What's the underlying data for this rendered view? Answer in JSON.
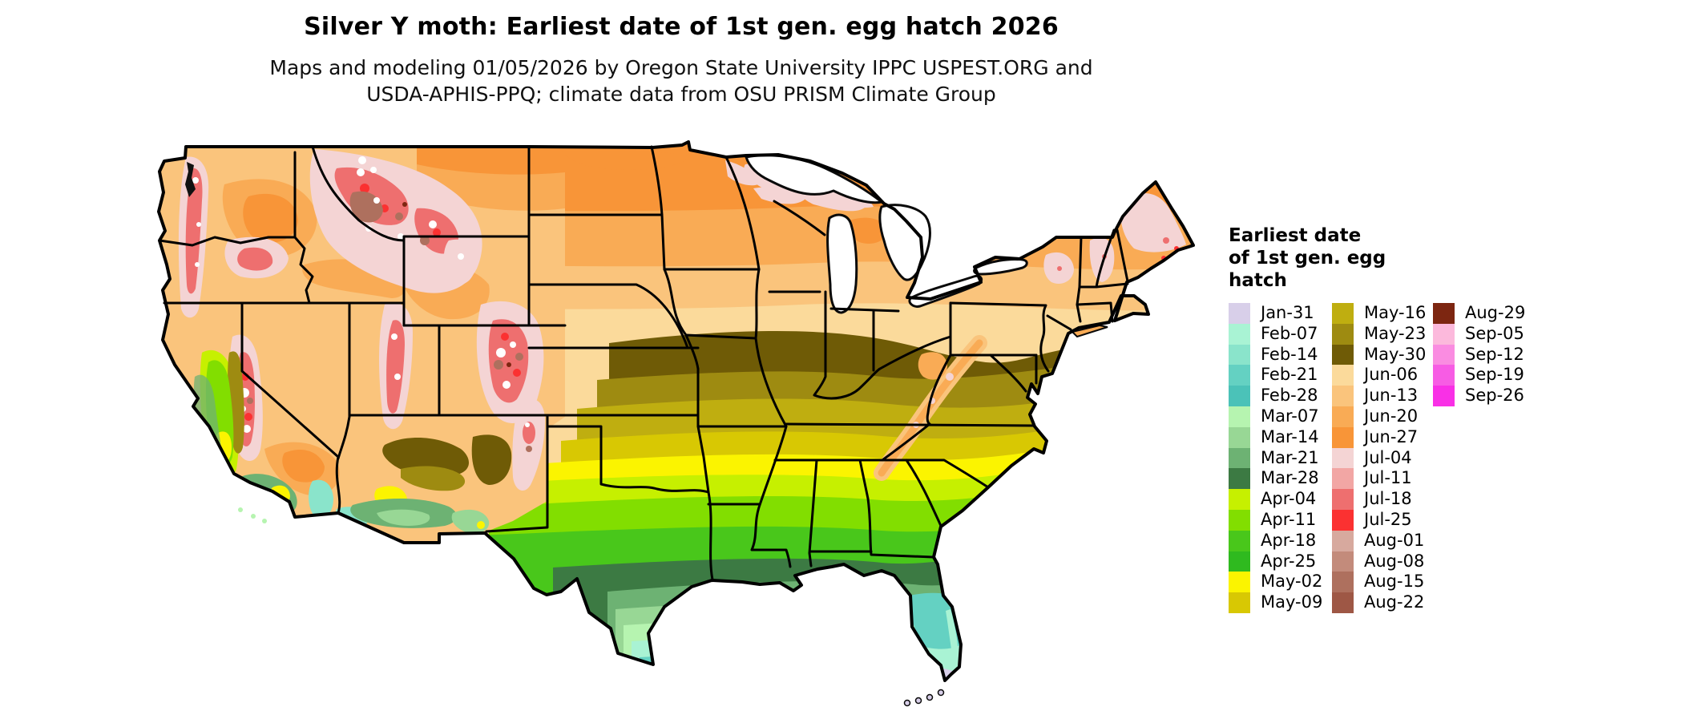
{
  "title": "Silver Y moth: Earliest date of 1st gen. egg hatch 2026",
  "subtitle": {
    "line1": "Maps and modeling 01/05/2026 by Oregon State University IPPC USPEST.ORG and",
    "line2": "USDA-APHIS-PPQ; climate data from OSU PRISM Climate Group"
  },
  "legend": {
    "title_lines": [
      "Earliest date",
      "of 1st gen. egg",
      "hatch"
    ],
    "columns": [
      [
        {
          "label": "Jan-31",
          "color": "#d8cfe9"
        },
        {
          "label": "Feb-07",
          "color": "#a9f3d4"
        },
        {
          "label": "Feb-14",
          "color": "#8ae4cb"
        },
        {
          "label": "Feb-21",
          "color": "#64d1c2"
        },
        {
          "label": "Feb-28",
          "color": "#4bc2b8"
        },
        {
          "label": "Mar-07",
          "color": "#b6f4b0"
        },
        {
          "label": "Mar-14",
          "color": "#98d795"
        },
        {
          "label": "Mar-21",
          "color": "#6db273"
        },
        {
          "label": "Mar-28",
          "color": "#3c7a43"
        },
        {
          "label": "Apr-04",
          "color": "#c6f000"
        },
        {
          "label": "Apr-11",
          "color": "#82de00"
        },
        {
          "label": "Apr-18",
          "color": "#49c71b"
        },
        {
          "label": "Apr-25",
          "color": "#2fba1f"
        },
        {
          "label": "May-02",
          "color": "#fbf400"
        },
        {
          "label": "May-09",
          "color": "#d8c803"
        }
      ],
      [
        {
          "label": "May-16",
          "color": "#bfae10"
        },
        {
          "label": "May-23",
          "color": "#9e8b11"
        },
        {
          "label": "May-30",
          "color": "#6f5b06"
        },
        {
          "label": "Jun-06",
          "color": "#fbda9b"
        },
        {
          "label": "Jun-13",
          "color": "#fac47c"
        },
        {
          "label": "Jun-20",
          "color": "#f9ab55"
        },
        {
          "label": "Jun-27",
          "color": "#f89538"
        },
        {
          "label": "Jul-04",
          "color": "#f4d4d4"
        },
        {
          "label": "Jul-11",
          "color": "#f2a6a4"
        },
        {
          "label": "Jul-18",
          "color": "#ee6f6f"
        },
        {
          "label": "Jul-25",
          "color": "#fb3131"
        },
        {
          "label": "Aug-01",
          "color": "#d7a99e"
        },
        {
          "label": "Aug-08",
          "color": "#c38b7b"
        },
        {
          "label": "Aug-15",
          "color": "#ae705e"
        },
        {
          "label": "Aug-22",
          "color": "#9e5745"
        }
      ],
      [
        {
          "label": "Aug-29",
          "color": "#7d2611"
        },
        {
          "label": "Sep-05",
          "color": "#fcb9dc"
        },
        {
          "label": "Sep-12",
          "color": "#fa8ce1"
        },
        {
          "label": "Sep-19",
          "color": "#f75ce4"
        },
        {
          "label": "Sep-26",
          "color": "#f930e6"
        }
      ]
    ]
  },
  "map": {
    "state_border_color": "#000000",
    "water_color": "#ffffff",
    "no_hatch_patch_color": "#ffffff"
  }
}
